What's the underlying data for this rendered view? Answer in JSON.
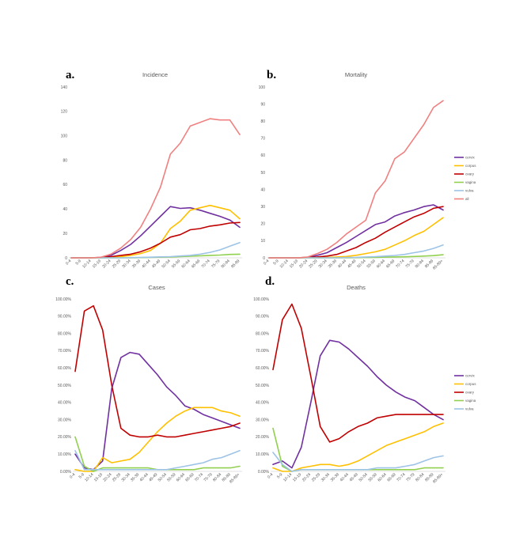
{
  "colors": {
    "cervix": "#7030A0",
    "corpus": "#FFC000",
    "ovary": "#C00000",
    "vagina": "#92D050",
    "vulva": "#9DC3E6",
    "all": "#F08080"
  },
  "chart_data": [
    {
      "panel": "a.",
      "type": "line",
      "title": "Incidence",
      "xlabel": "",
      "ylabel": "",
      "categories": [
        "0-4",
        "5-9",
        "10-14",
        "15-19",
        "20-24",
        "25-29",
        "30-34",
        "35-39",
        "40-44",
        "45-49",
        "50-54",
        "55-59",
        "60-64",
        "65-69",
        "70-74",
        "75-79",
        "80-84",
        "85-89"
      ],
      "ylim": [
        0,
        140
      ],
      "yticks": [
        "0",
        "20",
        "40",
        "60",
        "80",
        "100",
        "120",
        "140"
      ],
      "legend_position": "none",
      "series": [
        {
          "name": "cervix",
          "color_key": "cervix",
          "values": [
            0,
            0,
            0,
            0.3,
            2,
            6,
            11,
            18,
            26,
            34,
            42,
            40.5,
            41,
            39,
            36.5,
            34,
            31,
            25
          ]
        },
        {
          "name": "corpus",
          "color_key": "corpus",
          "values": [
            0,
            0,
            0,
            0,
            0.5,
            1,
            2,
            3.5,
            6,
            12,
            24,
            30,
            39,
            41,
            43,
            41,
            39,
            32
          ]
        },
        {
          "name": "ovary",
          "color_key": "ovary",
          "values": [
            0,
            0,
            0,
            0.3,
            1,
            2,
            3,
            5,
            8,
            12,
            17,
            19,
            23,
            24,
            26,
            27,
            28.5,
            29
          ]
        },
        {
          "name": "vagina",
          "color_key": "vagina",
          "values": [
            0,
            0,
            0,
            0,
            0,
            0,
            0,
            0.2,
            0.3,
            0.5,
            0.7,
            1,
            1.3,
            1.6,
            2,
            2.3,
            2.8,
            3
          ]
        },
        {
          "name": "vulva",
          "color_key": "vulva",
          "values": [
            0,
            0,
            0,
            0,
            0,
            0,
            0.2,
            0.3,
            0.5,
            0.8,
            1,
            1.5,
            2,
            3,
            4.5,
            6.5,
            9.5,
            12.5
          ]
        },
        {
          "name": "all",
          "color_key": "all",
          "values": [
            0,
            0,
            0,
            0.5,
            3,
            8,
            15,
            25,
            40,
            58,
            85,
            94,
            108,
            111,
            114,
            113,
            113,
            101
          ]
        }
      ]
    },
    {
      "panel": "b.",
      "type": "line",
      "title": "Mortality",
      "xlabel": "",
      "ylabel": "",
      "categories": [
        "0-4",
        "5-9",
        "10-14",
        "15-19",
        "20-24",
        "25-29",
        "30-34",
        "35-39",
        "40-44",
        "45-49",
        "50-54",
        "55-59",
        "60-64",
        "65-69",
        "70-74",
        "75-79",
        "80-84",
        "85-89",
        "85-89+"
      ],
      "ylim": [
        0,
        100
      ],
      "yticks": [
        "0",
        "10",
        "20",
        "30",
        "40",
        "50",
        "60",
        "70",
        "80",
        "90",
        "100"
      ],
      "legend_position": "right",
      "legend": [
        "cervix",
        "corpus",
        "ovary",
        "vagina",
        "vulva",
        "all"
      ],
      "series": [
        {
          "name": "cervix",
          "color_key": "cervix",
          "values": [
            0,
            0,
            0,
            0,
            0.3,
            1.5,
            3,
            6,
            9,
            12.5,
            16,
            19.5,
            21,
            24.5,
            26.5,
            28,
            30,
            31,
            28
          ]
        },
        {
          "name": "corpus",
          "color_key": "corpus",
          "values": [
            0,
            0,
            0,
            0,
            0,
            0,
            0.2,
            0.5,
            0.8,
            1.5,
            2.5,
            3.5,
            5,
            7.5,
            10,
            13,
            15.5,
            19.5,
            23.5
          ]
        },
        {
          "name": "ovary",
          "color_key": "ovary",
          "values": [
            0,
            0,
            0,
            0,
            0.3,
            0.5,
            1,
            2,
            4,
            6,
            9,
            11.5,
            15,
            18,
            21,
            24,
            26,
            29,
            30
          ]
        },
        {
          "name": "vagina",
          "color_key": "vagina",
          "values": [
            0,
            0,
            0,
            0,
            0,
            0,
            0,
            0,
            0,
            0.1,
            0.2,
            0.3,
            0.4,
            0.5,
            0.6,
            0.8,
            1,
            1.3,
            1.8
          ]
        },
        {
          "name": "vulva",
          "color_key": "vulva",
          "values": [
            0,
            0,
            0,
            0,
            0,
            0,
            0,
            0,
            0.2,
            0.3,
            0.5,
            0.7,
            1,
            1.4,
            2,
            3,
            4,
            5.5,
            7.5
          ]
        },
        {
          "name": "all",
          "color_key": "all",
          "values": [
            0,
            0,
            0,
            0,
            0.5,
            2.5,
            5,
            9,
            14,
            18,
            22,
            38,
            45,
            58,
            62,
            70,
            78,
            88,
            92
          ]
        }
      ]
    },
    {
      "panel": "c.",
      "type": "line",
      "title": "Cases",
      "xlabel": "",
      "ylabel": "",
      "categories": [
        "0-4",
        "5-9",
        "10-14",
        "15-19",
        "20-24",
        "25-29",
        "30-34",
        "35-39",
        "40-44",
        "45-49",
        "50-54",
        "55-59",
        "60-64",
        "65-69",
        "70-74",
        "75-79",
        "80-84",
        "85-89",
        "85-89+"
      ],
      "ylim": [
        0,
        100
      ],
      "yticks": [
        "0.00%",
        "10.00%",
        "20.00%",
        "30.00%",
        "40.00%",
        "50.00%",
        "60.00%",
        "70.00%",
        "80.00%",
        "90.00%",
        "100.00%"
      ],
      "legend_position": "none",
      "series": [
        {
          "name": "cervix",
          "color_key": "cervix",
          "values": [
            10,
            2,
            1,
            6,
            48,
            66,
            69,
            68,
            62,
            56,
            49,
            44,
            38,
            36,
            33,
            31,
            29,
            27,
            25
          ]
        },
        {
          "name": "corpus",
          "color_key": "corpus",
          "values": [
            1,
            0,
            0,
            8,
            5,
            6,
            7,
            11,
            17,
            23,
            28,
            32,
            35,
            37,
            37,
            37,
            35,
            34,
            32
          ]
        },
        {
          "name": "ovary",
          "color_key": "ovary",
          "values": [
            58,
            93,
            96,
            82,
            50,
            25,
            21,
            20,
            20,
            21,
            20,
            20,
            21,
            22,
            23,
            24,
            25,
            26,
            28
          ]
        },
        {
          "name": "vagina",
          "color_key": "vagina",
          "values": [
            20,
            3,
            0,
            2,
            2,
            2,
            2,
            2,
            2,
            1,
            1,
            1,
            1,
            1,
            2,
            2,
            2,
            2,
            3
          ]
        },
        {
          "name": "vulva",
          "color_key": "vulva",
          "values": [
            12,
            1,
            1,
            1,
            1,
            1,
            1,
            1,
            1,
            1,
            1,
            2,
            3,
            4,
            5,
            7,
            8,
            10,
            12
          ]
        }
      ]
    },
    {
      "panel": "d.",
      "type": "line",
      "title": "Deaths",
      "xlabel": "",
      "ylabel": "",
      "categories": [
        "0-4",
        "5-9",
        "10-14",
        "15-19",
        "20-24",
        "25-29",
        "30-34",
        "35-39",
        "40-44",
        "45-49",
        "50-54",
        "55-59",
        "60-64",
        "65-69",
        "70-74",
        "75-79",
        "80-84",
        "85-89",
        "85-89+"
      ],
      "ylim": [
        0,
        100
      ],
      "yticks": [
        "0.00%",
        "10.00%",
        "20.00%",
        "30.00%",
        "40.00%",
        "50.00%",
        "60.00%",
        "70.00%",
        "80.00%",
        "90.00%",
        "100.00%"
      ],
      "legend_position": "right",
      "legend": [
        "cervix",
        "corpus",
        "ovary",
        "vagina",
        "vulva"
      ],
      "series": [
        {
          "name": "cervix",
          "color_key": "cervix",
          "values": [
            4,
            6,
            2,
            14,
            40,
            67,
            76,
            75,
            71,
            66,
            61,
            55,
            50,
            46,
            43,
            41,
            37,
            33,
            30
          ]
        },
        {
          "name": "corpus",
          "color_key": "corpus",
          "values": [
            2,
            0,
            0,
            2,
            3,
            4,
            4,
            3,
            4,
            6,
            9,
            12,
            15,
            17,
            19,
            21,
            23,
            26,
            28
          ]
        },
        {
          "name": "ovary",
          "color_key": "ovary",
          "values": [
            59,
            88,
            97,
            83,
            55,
            26,
            17,
            19,
            23,
            26,
            28,
            31,
            32,
            33,
            33,
            33,
            33,
            33,
            33
          ]
        },
        {
          "name": "vagina",
          "color_key": "vagina",
          "values": [
            25,
            3,
            0,
            1,
            1,
            1,
            1,
            1,
            1,
            1,
            1,
            1,
            1,
            1,
            1,
            1,
            2,
            2,
            2
          ]
        },
        {
          "name": "vulva",
          "color_key": "vulva",
          "values": [
            11,
            4,
            0,
            1,
            1,
            1,
            1,
            1,
            1,
            1,
            1,
            2,
            2,
            2,
            3,
            4,
            6,
            8,
            9
          ]
        }
      ]
    }
  ]
}
